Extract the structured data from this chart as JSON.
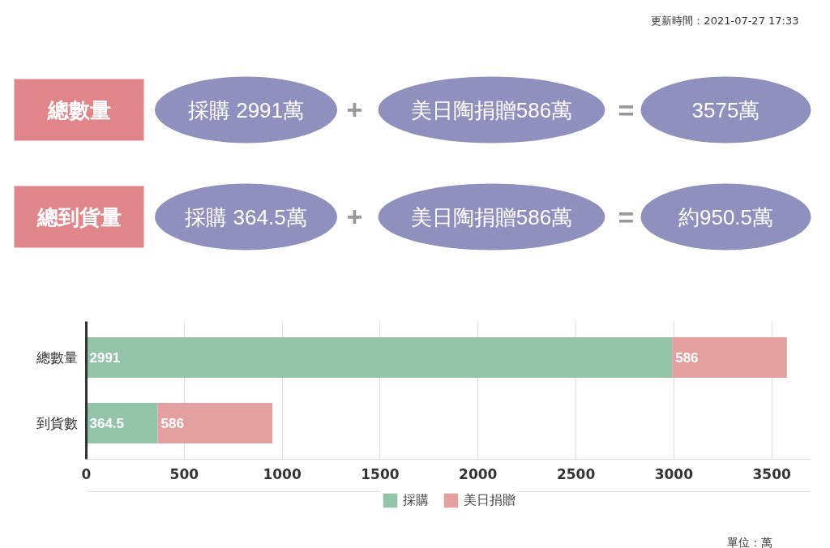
{
  "chart_data": [
    {
      "type": "other",
      "annotations": [
        "更新時間：2021-07-27 17:33",
        "總數量",
        "採購 2991萬",
        "+",
        "美日陶捐贈586萬",
        "=",
        "3575萬",
        "總到貨量",
        "採購 364.5萬",
        "+",
        "美日陶捐贈586萬",
        "=",
        "約950.5萬"
      ]
    },
    {
      "type": "bar",
      "orientation": "horizontal",
      "stacked": true,
      "categories": [
        "總數量",
        "到貨數"
      ],
      "series": [
        {
          "name": "採購",
          "color": "#93c4a9",
          "values": [
            2991,
            364.5
          ]
        },
        {
          "name": "美日捐贈",
          "color": "#e4a0a0",
          "values": [
            586,
            586
          ]
        }
      ],
      "xlim": [
        0,
        3700
      ],
      "xticks": [
        0,
        500,
        1000,
        1500,
        2000,
        2500,
        3000,
        3500
      ],
      "grid": "x",
      "data_labels": true,
      "legend": "bottom",
      "annotations": [
        "單位：萬"
      ]
    }
  ]
}
